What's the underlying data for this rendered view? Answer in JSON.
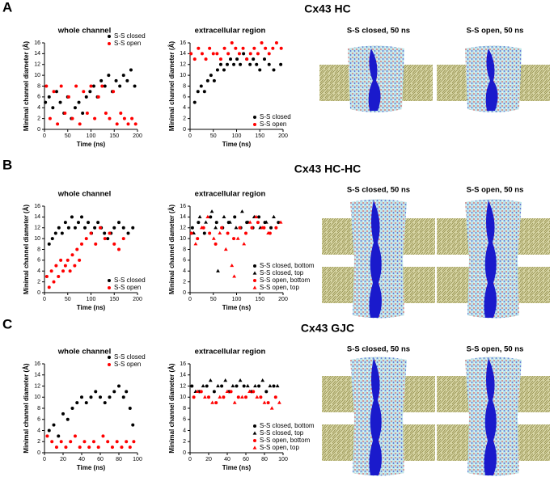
{
  "panels": [
    {
      "label": "A",
      "title": "Cx43 HC",
      "images": [
        "S-S closed, 50 ns",
        "S-S open, 50 ns"
      ]
    },
    {
      "label": "B",
      "title": "Cx43 HC-HC",
      "images": [
        "S-S closed, 50 ns",
        "S-S open, 50 ns"
      ]
    },
    {
      "label": "C",
      "title": "Cx43 GJC",
      "images": [
        "S-S closed, 50 ns",
        "S-S open, 50 ns"
      ]
    }
  ],
  "chart_data": [
    {
      "type": "scatter",
      "title": "whole channel",
      "xlabel": "Time (ns)",
      "ylabel": "Minimal channel diameter (Å)",
      "xlim": [
        0,
        200
      ],
      "xticks": [
        0,
        50,
        100,
        150,
        200
      ],
      "ylim": [
        0,
        16
      ],
      "yticks": [
        0,
        2,
        4,
        6,
        8,
        10,
        12,
        14,
        16
      ],
      "legend": "upper right",
      "series": [
        {
          "name": "S-S closed",
          "color": "#000000",
          "marker": "circle",
          "x": [
            2,
            10,
            18,
            26,
            34,
            42,
            50,
            58,
            66,
            74,
            82,
            90,
            98,
            106,
            114,
            122,
            130,
            138,
            146,
            154,
            162,
            170,
            178,
            186,
            194
          ],
          "values": [
            5,
            6,
            4,
            7,
            5,
            3,
            6,
            2,
            4,
            5,
            3,
            6,
            7,
            8,
            6,
            9,
            8,
            10,
            7,
            9,
            8,
            10,
            9,
            11,
            8
          ]
        },
        {
          "name": "S-S open",
          "color": "#ff0000",
          "marker": "circle",
          "x": [
            4,
            12,
            20,
            28,
            36,
            44,
            52,
            60,
            68,
            76,
            84,
            92,
            100,
            108,
            116,
            124,
            132,
            140,
            148,
            156,
            164,
            172,
            180,
            188,
            196
          ],
          "values": [
            8,
            2,
            7,
            1,
            8,
            3,
            6,
            2,
            8,
            1,
            7,
            3,
            8,
            2,
            6,
            8,
            3,
            2,
            7,
            1,
            3,
            2,
            1,
            2,
            1
          ]
        }
      ]
    },
    {
      "type": "scatter",
      "title": "extracellular region",
      "xlabel": "Time (ns)",
      "ylabel": "Minimal channel diameter (Å)",
      "xlim": [
        0,
        200
      ],
      "xticks": [
        0,
        50,
        100,
        150,
        200
      ],
      "ylim": [
        0,
        16
      ],
      "yticks": [
        0,
        2,
        4,
        6,
        8,
        10,
        12,
        14,
        16
      ],
      "legend": "lower right",
      "series": [
        {
          "name": "S-S closed",
          "color": "#000000",
          "marker": "circle",
          "x": [
            10,
            17,
            24,
            31,
            38,
            45,
            52,
            59,
            66,
            73,
            80,
            87,
            94,
            101,
            108,
            115,
            122,
            129,
            136,
            143,
            150,
            160,
            170,
            180,
            195
          ],
          "values": [
            5,
            7,
            8,
            7,
            9,
            10,
            9,
            11,
            12,
            11,
            12,
            13,
            12,
            13,
            12,
            14,
            13,
            12,
            13,
            12,
            11,
            13,
            12,
            11,
            12
          ]
        },
        {
          "name": "S-S open",
          "color": "#ff0000",
          "marker": "circle",
          "x": [
            2,
            10,
            18,
            26,
            34,
            42,
            50,
            58,
            66,
            74,
            82,
            90,
            98,
            106,
            114,
            122,
            130,
            138,
            146,
            154,
            162,
            170,
            178,
            186,
            196
          ],
          "values": [
            14,
            13,
            15,
            14,
            13,
            15,
            14,
            14,
            13,
            15,
            14,
            16,
            15,
            14,
            15,
            13,
            14,
            15,
            14,
            16,
            15,
            14,
            15,
            16,
            15
          ]
        }
      ]
    },
    {
      "type": "scatter",
      "title": "whole channel",
      "xlabel": "Time (ns)",
      "ylabel": "Minimal channel diameter (Å)",
      "xlim": [
        0,
        200
      ],
      "xticks": [
        0,
        50,
        100,
        150,
        200
      ],
      "ylim": [
        0,
        16
      ],
      "yticks": [
        0,
        2,
        4,
        6,
        8,
        10,
        12,
        14,
        16
      ],
      "legend": "lower right",
      "series": [
        {
          "name": "S-S closed",
          "color": "#000000",
          "marker": "circle",
          "x": [
            10,
            17,
            24,
            31,
            38,
            45,
            52,
            59,
            66,
            73,
            80,
            87,
            94,
            101,
            108,
            115,
            122,
            129,
            136,
            143,
            150,
            160,
            170,
            180,
            190
          ],
          "values": [
            9,
            10,
            11,
            12,
            11,
            13,
            12,
            14,
            12,
            13,
            14,
            12,
            13,
            11,
            12,
            13,
            12,
            11,
            10,
            11,
            12,
            13,
            12,
            11,
            12
          ]
        },
        {
          "name": "S-S open",
          "color": "#ff0000",
          "marker": "circle",
          "x": [
            5,
            10,
            15,
            20,
            25,
            30,
            35,
            40,
            45,
            50,
            55,
            60,
            65,
            70,
            75,
            80,
            90,
            100,
            110,
            120,
            130,
            140,
            150,
            160,
            170
          ],
          "values": [
            3,
            1,
            4,
            2,
            5,
            3,
            6,
            4,
            5,
            6,
            4,
            7,
            5,
            8,
            6,
            9,
            10,
            11,
            9,
            12,
            10,
            11,
            9,
            8,
            10
          ]
        }
      ]
    },
    {
      "type": "scatter",
      "title": "extracellular region",
      "xlabel": "Time (ns)",
      "ylabel": "Minimal channel diameter (Å)",
      "xlim": [
        0,
        200
      ],
      "xticks": [
        0,
        50,
        100,
        150,
        200
      ],
      "ylim": [
        0,
        16
      ],
      "yticks": [
        0,
        2,
        4,
        6,
        8,
        10,
        12,
        14,
        16
      ],
      "legend": "lower right",
      "series": [
        {
          "name": "S-S closed, bottom",
          "color": "#000000",
          "marker": "circle",
          "x": [
            5,
            18,
            31,
            44,
            57,
            70,
            83,
            96,
            109,
            122,
            135,
            148,
            161,
            174,
            190
          ],
          "values": [
            12,
            13,
            11,
            14,
            13,
            12,
            13,
            14,
            12,
            13,
            12,
            14,
            13,
            12,
            13
          ]
        },
        {
          "name": "S-S closed, top",
          "color": "#000000",
          "marker": "triangle",
          "x": [
            8,
            21,
            34,
            47,
            55,
            60,
            73,
            86,
            99,
            112,
            125,
            138,
            151,
            164,
            180
          ],
          "values": [
            11,
            14,
            13,
            15,
            12,
            4,
            14,
            13,
            12,
            15,
            13,
            14,
            12,
            13,
            14
          ]
        },
        {
          "name": "S-S open, bottom",
          "color": "#ff0000",
          "marker": "circle",
          "x": [
            3,
            16,
            29,
            42,
            55,
            68,
            81,
            94,
            107,
            120,
            133,
            146,
            159,
            172,
            185
          ],
          "values": [
            11,
            10,
            12,
            11,
            9,
            12,
            11,
            10,
            12,
            11,
            12,
            13,
            12,
            11,
            12
          ]
        },
        {
          "name": "S-S open, top",
          "color": "#ff0000",
          "marker": "triangle",
          "x": [
            12,
            25,
            38,
            51,
            64,
            77,
            90,
            95,
            103,
            116,
            129,
            142,
            155,
            168,
            195
          ],
          "values": [
            9,
            12,
            14,
            10,
            11,
            8,
            5,
            3,
            10,
            9,
            13,
            14,
            12,
            11,
            13
          ]
        }
      ]
    },
    {
      "type": "scatter",
      "title": "whole channel",
      "xlabel": "Time (ns)",
      "ylabel": "Minimal channel diameter (Å)",
      "xlim": [
        0,
        100
      ],
      "xticks": [
        0,
        20,
        40,
        60,
        80,
        100
      ],
      "ylim": [
        0,
        16
      ],
      "yticks": [
        0,
        2,
        4,
        6,
        8,
        10,
        12,
        14,
        16
      ],
      "legend": "upper right",
      "series": [
        {
          "name": "S-S closed",
          "color": "#000000",
          "marker": "circle",
          "x": [
            5,
            10,
            15,
            20,
            25,
            30,
            35,
            40,
            45,
            50,
            55,
            60,
            65,
            70,
            75,
            80,
            85,
            88,
            92,
            95
          ],
          "values": [
            4,
            5,
            3,
            7,
            6,
            8,
            9,
            10,
            9,
            10,
            11,
            10,
            9,
            10,
            11,
            12,
            10,
            11,
            8,
            5
          ]
        },
        {
          "name": "S-S open",
          "color": "#ff0000",
          "marker": "circle",
          "x": [
            3,
            8,
            13,
            18,
            23,
            28,
            33,
            38,
            43,
            48,
            53,
            58,
            63,
            68,
            73,
            78,
            83,
            88,
            92,
            96
          ],
          "values": [
            3,
            2,
            1,
            2,
            1,
            2,
            3,
            1,
            2,
            1,
            2,
            1,
            3,
            2,
            1,
            2,
            1,
            2,
            1,
            2
          ]
        }
      ]
    },
    {
      "type": "scatter",
      "title": "extracellular region",
      "xlabel": "Time (ns)",
      "ylabel": "Minimal channel diameter (Å)",
      "xlim": [
        0,
        100
      ],
      "xticks": [
        0,
        20,
        40,
        60,
        80,
        100
      ],
      "ylim": [
        0,
        16
      ],
      "yticks": [
        0,
        2,
        4,
        6,
        8,
        10,
        12,
        14,
        16
      ],
      "legend": "lower right",
      "series": [
        {
          "name": "S-S closed, bottom",
          "color": "#000000",
          "marker": "circle",
          "x": [
            2,
            10,
            18,
            26,
            34,
            42,
            50,
            58,
            66,
            74,
            82,
            90
          ],
          "values": [
            12,
            11,
            12,
            11,
            12,
            11,
            12,
            12,
            11,
            12,
            11,
            12
          ]
        },
        {
          "name": "S-S closed, top",
          "color": "#000000",
          "marker": "triangle",
          "x": [
            6,
            14,
            22,
            30,
            38,
            46,
            54,
            62,
            70,
            78,
            86,
            94
          ],
          "values": [
            11,
            12,
            13,
            12,
            13,
            12,
            13,
            12,
            12,
            13,
            12,
            12
          ]
        },
        {
          "name": "S-S open, bottom",
          "color": "#ff0000",
          "marker": "circle",
          "x": [
            4,
            12,
            20,
            28,
            36,
            44,
            52,
            60,
            68,
            76,
            84,
            92
          ],
          "values": [
            10,
            11,
            10,
            9,
            10,
            11,
            10,
            10,
            11,
            10,
            9,
            10
          ]
        },
        {
          "name": "S-S open, top",
          "color": "#ff0000",
          "marker": "triangle",
          "x": [
            8,
            16,
            24,
            32,
            40,
            48,
            56,
            64,
            72,
            80,
            88,
            96
          ],
          "values": [
            11,
            10,
            9,
            10,
            11,
            9,
            10,
            11,
            10,
            9,
            8,
            9
          ]
        }
      ]
    }
  ]
}
